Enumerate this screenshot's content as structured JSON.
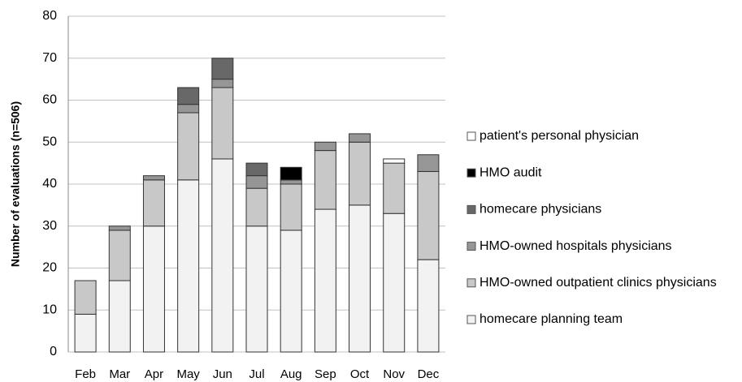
{
  "chart_data": {
    "type": "stacked_bar",
    "ylabel": "Number of evaluations (n=506)",
    "categories": [
      "Feb",
      "Mar",
      "Apr",
      "May",
      "Jun",
      "Jul",
      "Aug",
      "Sep",
      "Oct",
      "Nov",
      "Dec"
    ],
    "series": [
      {
        "name": "homecare planning team",
        "color": "#f2f2f2",
        "values": [
          9,
          17,
          30,
          41,
          46,
          30,
          29,
          34,
          35,
          33,
          22
        ]
      },
      {
        "name": "HMO-owned outpatient clinics physicians",
        "color": "#c8c8c8",
        "values": [
          8,
          12,
          11,
          16,
          17,
          9,
          11,
          14,
          15,
          12,
          21
        ]
      },
      {
        "name": "HMO-owned hospitals physicians",
        "color": "#969696",
        "values": [
          0,
          1,
          1,
          2,
          2,
          3,
          1,
          2,
          2,
          0,
          4
        ]
      },
      {
        "name": "homecare physicians",
        "color": "#686868",
        "values": [
          0,
          0,
          0,
          4,
          5,
          3,
          0,
          0,
          0,
          0,
          0
        ]
      },
      {
        "name": "HMO audit",
        "color": "#000000",
        "values": [
          0,
          0,
          0,
          0,
          0,
          0,
          3,
          0,
          0,
          0,
          0
        ]
      },
      {
        "name": "patient's personal physician",
        "color": "#ffffff",
        "values": [
          0,
          0,
          0,
          0,
          0,
          0,
          0,
          0,
          0,
          1,
          0
        ]
      }
    ],
    "ylim": [
      0,
      80
    ],
    "yticks": [
      0,
      10,
      20,
      30,
      40,
      50,
      60,
      70,
      80
    ],
    "grid": true,
    "legend": "right"
  }
}
